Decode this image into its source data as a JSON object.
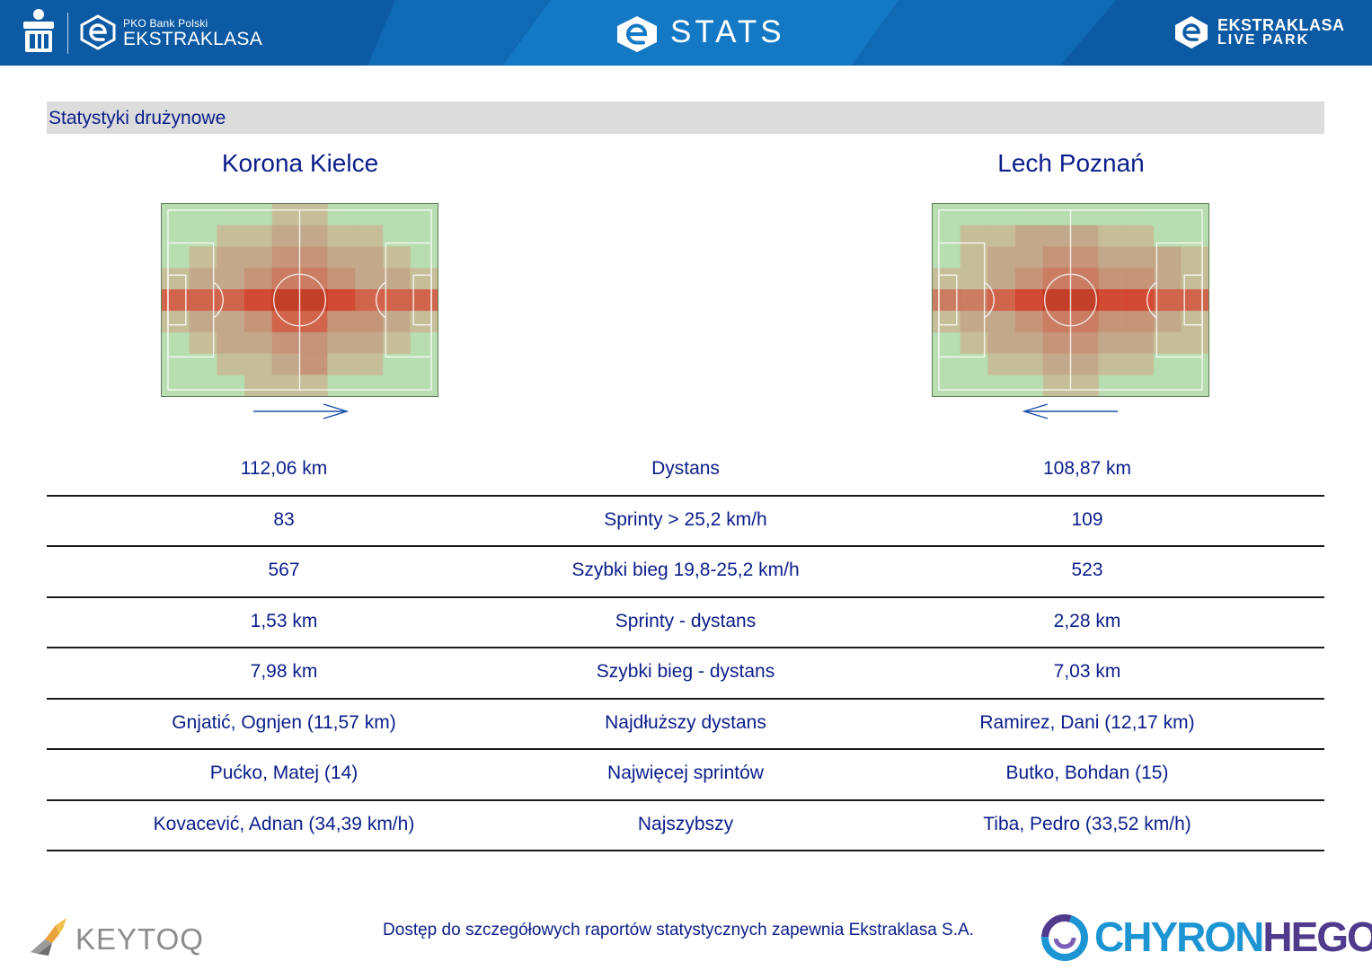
{
  "header": {
    "left_brand_small": "PKO Bank Polski",
    "left_brand_big": "EKSTRAKLASA",
    "center_title": "STATS",
    "right_brand_line1": "EKSTRAKLASA",
    "right_brand_line2": "LIVE PARK"
  },
  "section": {
    "title": "Statystyki drużynowe"
  },
  "teams": {
    "left": {
      "name": "Korona Kielce",
      "attack_direction": "right"
    },
    "right": {
      "name": "Lech Poznań",
      "attack_direction": "left"
    }
  },
  "heatmaps": {
    "left": [
      "0000110000",
      "0011221100",
      "0122332210",
      "1223443221",
      "5556776555",
      "1223553321",
      "0122332210",
      "0011231100",
      "0001110000"
    ],
    "right": [
      "0000000000",
      "0112221100",
      "0122332221",
      "1123443321",
      "4456776655",
      "1223443321",
      "0122332211",
      "0011221100",
      "0000110000"
    ]
  },
  "stats": [
    {
      "left": "112,06 km",
      "label": "Dystans",
      "right": "108,87 km"
    },
    {
      "left": "83",
      "label": "Sprinty > 25,2 km/h",
      "right": "109"
    },
    {
      "left": "567",
      "label": "Szybki bieg 19,8-25,2 km/h",
      "right": "523"
    },
    {
      "left": "1,53 km",
      "label": "Sprinty - dystans",
      "right": "2,28 km"
    },
    {
      "left": "7,98 km",
      "label": "Szybki bieg - dystans",
      "right": "7,03 km"
    },
    {
      "left": "Gnjatić, Ognjen (11,57 km)",
      "label": "Najdłuższy dystans",
      "right": "Ramirez, Dani (12,17 km)"
    },
    {
      "left": "Pućko, Matej (14)",
      "label": "Najwięcej sprintów",
      "right": "Butko, Bohdan (15)"
    },
    {
      "left": "Kovacević, Adnan (34,39 km/h)",
      "label": "Najszybszy",
      "right": "Tiba, Pedro (33,52 km/h)"
    }
  ],
  "footer": {
    "keytoq": "KEYTOQ",
    "note": "Dostęp do szczegółowych raportów statystycznych zapewnia Ekstraklasa S.A.",
    "chyron_part1": "CHYRON",
    "chyron_part2": "HEGO"
  },
  "colors": {
    "header_blue": "#0f6ab3",
    "text_navy": "#0b1e8a",
    "pitch_green": "#b7ddb0",
    "heat_red": "#d7301f",
    "section_grey": "#dcdcdc"
  },
  "icons": {
    "pko": "pko-bp-logo-icon",
    "ekstraklasa": "ekstraklasa-e-icon",
    "arrow_left_team": "arrow-right-icon",
    "arrow_right_team": "arrow-left-icon",
    "keytoq": "keytoq-bird-icon",
    "chyron": "chyronhego-swirl-icon"
  }
}
